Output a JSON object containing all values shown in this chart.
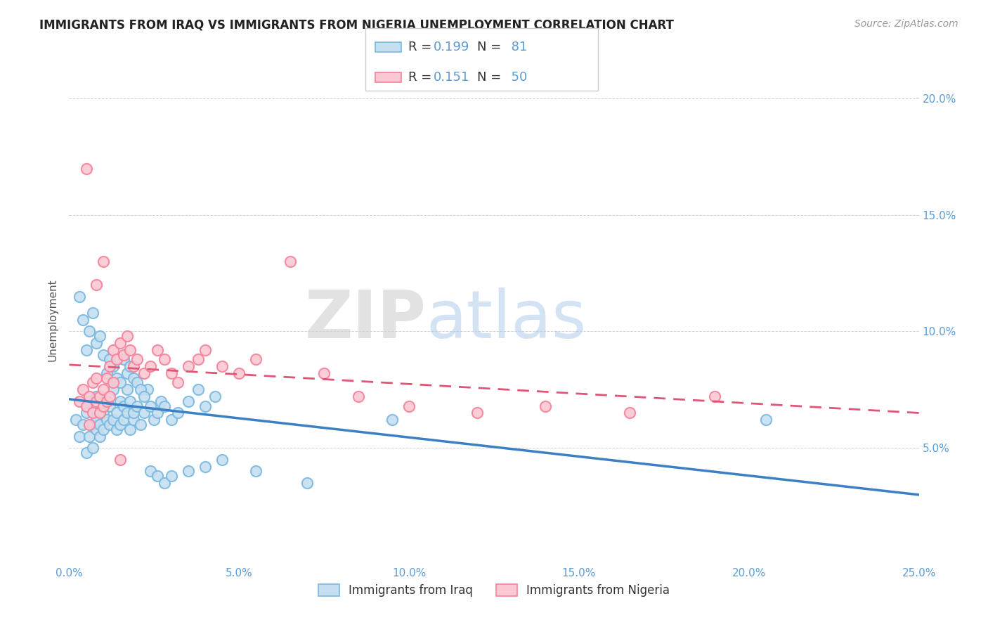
{
  "title": "IMMIGRANTS FROM IRAQ VS IMMIGRANTS FROM NIGERIA UNEMPLOYMENT CORRELATION CHART",
  "source": "Source: ZipAtlas.com",
  "ylabel": "Unemployment",
  "xlim": [
    0.0,
    0.25
  ],
  "ylim": [
    0.0,
    0.21
  ],
  "xticks": [
    0.0,
    0.05,
    0.1,
    0.15,
    0.2,
    0.25
  ],
  "xtick_labels": [
    "0.0%",
    "5.0%",
    "10.0%",
    "15.0%",
    "20.0%",
    "25.0%"
  ],
  "yticks": [
    0.05,
    0.1,
    0.15,
    0.2
  ],
  "ytick_labels": [
    "5.0%",
    "10.0%",
    "15.0%",
    "20.0%"
  ],
  "iraq_color": "#7ab8e0",
  "iraq_color_fill": "#c5dff0",
  "nigeria_color": "#f4829a",
  "nigeria_color_fill": "#fac8d3",
  "line_iraq_color": "#3b7fc4",
  "line_nigeria_color": "#e05575",
  "R_iraq": 0.199,
  "N_iraq": 81,
  "R_nigeria": 0.151,
  "N_nigeria": 50,
  "watermark_zip": "ZIP",
  "watermark_atlas": "atlas",
  "legend_label_iraq": "Immigrants from Iraq",
  "legend_label_nigeria": "Immigrants from Nigeria",
  "tick_color": "#5b9bd5",
  "iraq_x": [
    0.002,
    0.003,
    0.004,
    0.005,
    0.005,
    0.006,
    0.006,
    0.007,
    0.007,
    0.008,
    0.008,
    0.008,
    0.009,
    0.009,
    0.009,
    0.01,
    0.01,
    0.011,
    0.011,
    0.012,
    0.012,
    0.013,
    0.013,
    0.014,
    0.014,
    0.015,
    0.015,
    0.016,
    0.016,
    0.017,
    0.017,
    0.018,
    0.018,
    0.019,
    0.019,
    0.02,
    0.021,
    0.022,
    0.023,
    0.024,
    0.025,
    0.026,
    0.027,
    0.028,
    0.03,
    0.032,
    0.035,
    0.038,
    0.04,
    0.043,
    0.003,
    0.004,
    0.005,
    0.006,
    0.007,
    0.008,
    0.009,
    0.01,
    0.011,
    0.012,
    0.013,
    0.014,
    0.015,
    0.016,
    0.017,
    0.018,
    0.019,
    0.02,
    0.021,
    0.022,
    0.024,
    0.026,
    0.028,
    0.03,
    0.035,
    0.04,
    0.045,
    0.055,
    0.07,
    0.095,
    0.205
  ],
  "iraq_y": [
    0.062,
    0.055,
    0.06,
    0.048,
    0.065,
    0.07,
    0.055,
    0.06,
    0.05,
    0.058,
    0.062,
    0.072,
    0.055,
    0.06,
    0.065,
    0.058,
    0.065,
    0.07,
    0.062,
    0.06,
    0.068,
    0.062,
    0.075,
    0.058,
    0.065,
    0.07,
    0.06,
    0.062,
    0.068,
    0.065,
    0.075,
    0.058,
    0.07,
    0.062,
    0.065,
    0.068,
    0.06,
    0.065,
    0.075,
    0.068,
    0.062,
    0.065,
    0.07,
    0.068,
    0.062,
    0.065,
    0.07,
    0.075,
    0.068,
    0.072,
    0.115,
    0.105,
    0.092,
    0.1,
    0.108,
    0.095,
    0.098,
    0.09,
    0.082,
    0.088,
    0.085,
    0.08,
    0.078,
    0.088,
    0.082,
    0.085,
    0.08,
    0.078,
    0.075,
    0.072,
    0.04,
    0.038,
    0.035,
    0.038,
    0.04,
    0.042,
    0.045,
    0.04,
    0.035,
    0.062,
    0.062
  ],
  "nigeria_x": [
    0.003,
    0.004,
    0.005,
    0.006,
    0.006,
    0.007,
    0.007,
    0.008,
    0.008,
    0.009,
    0.009,
    0.01,
    0.01,
    0.011,
    0.011,
    0.012,
    0.012,
    0.013,
    0.013,
    0.014,
    0.015,
    0.016,
    0.017,
    0.018,
    0.019,
    0.02,
    0.022,
    0.024,
    0.026,
    0.028,
    0.03,
    0.032,
    0.035,
    0.038,
    0.04,
    0.045,
    0.05,
    0.055,
    0.065,
    0.075,
    0.085,
    0.1,
    0.12,
    0.14,
    0.165,
    0.19,
    0.005,
    0.008,
    0.01,
    0.015
  ],
  "nigeria_y": [
    0.07,
    0.075,
    0.068,
    0.072,
    0.06,
    0.065,
    0.078,
    0.07,
    0.08,
    0.072,
    0.065,
    0.068,
    0.075,
    0.07,
    0.08,
    0.072,
    0.085,
    0.078,
    0.092,
    0.088,
    0.095,
    0.09,
    0.098,
    0.092,
    0.085,
    0.088,
    0.082,
    0.085,
    0.092,
    0.088,
    0.082,
    0.078,
    0.085,
    0.088,
    0.092,
    0.085,
    0.082,
    0.088,
    0.13,
    0.082,
    0.072,
    0.068,
    0.065,
    0.068,
    0.065,
    0.072,
    0.17,
    0.12,
    0.13,
    0.045
  ]
}
